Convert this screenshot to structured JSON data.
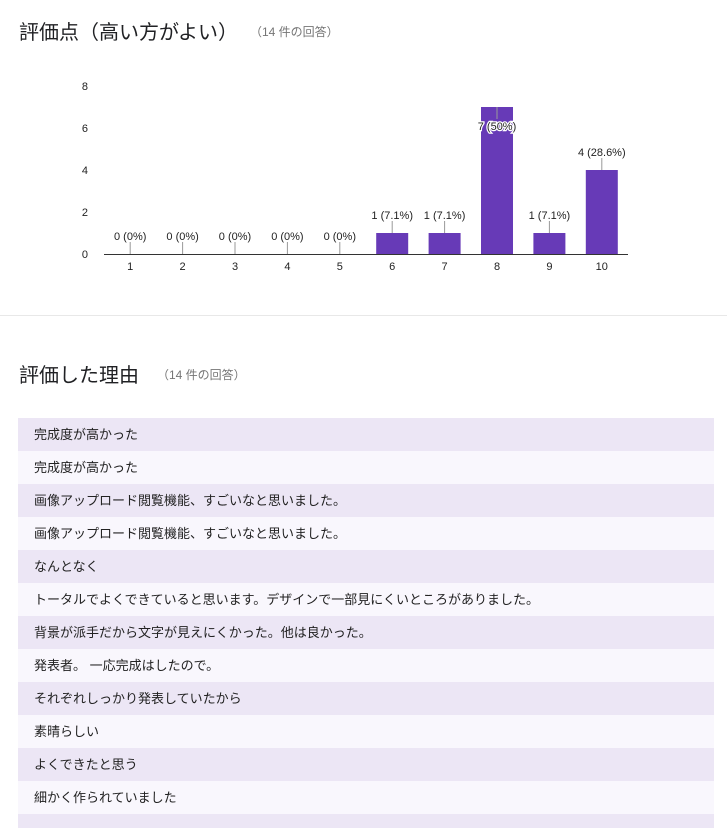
{
  "sections": [
    {
      "title": "評価点（高い方がよい）",
      "response_count": "（14 件の回答）"
    },
    {
      "title": "評価した理由",
      "response_count": "（14 件の回答）"
    }
  ],
  "colors": {
    "bar": "#673ab7",
    "row_odd": "#ece6f5",
    "row_even": "#f9f7fd",
    "axis": "#333333",
    "leader": "#999999"
  },
  "chart_data": {
    "type": "bar",
    "title": "評価点（高い方がよい）",
    "subtitle": "（14 件の回答）",
    "xlabel": "",
    "ylabel": "",
    "categories": [
      "1",
      "2",
      "3",
      "4",
      "5",
      "6",
      "7",
      "8",
      "9",
      "10"
    ],
    "values": [
      0,
      0,
      0,
      0,
      0,
      1,
      1,
      7,
      1,
      4
    ],
    "data_labels": [
      "0 (0%)",
      "0 (0%)",
      "0 (0%)",
      "0 (0%)",
      "0 (0%)",
      "1 (7.1%)",
      "1 (7.1%)",
      "7 (50%)",
      "1 (7.1%)",
      "4 (28.6%)"
    ],
    "yticks": [
      0,
      2,
      4,
      6,
      8
    ],
    "ylim": [
      0,
      8
    ],
    "grid": false,
    "legend": null,
    "bar_color": "#673ab7"
  },
  "responses": [
    "完成度が高かった",
    "完成度が高かった",
    "画像アップロード閲覧機能、すごいなと思いました。",
    "画像アップロード閲覧機能、すごいなと思いました。",
    "なんとなく",
    "トータルでよくできていると思います。デザインで一部見にくいところがありました。",
    "背景が派手だから文字が見えにくかった。他は良かった。",
    "発表者。 一応完成はしたので。",
    "それぞれしっかり発表していたから",
    "素晴らしい",
    "よくできたと思う",
    "細かく作られていました",
    ""
  ]
}
